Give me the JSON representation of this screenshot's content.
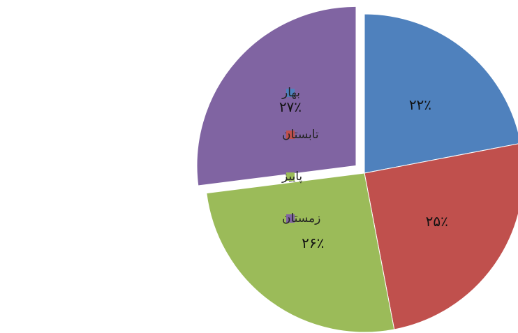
{
  "chart_data": {
    "type": "pie",
    "categories": [
      "بهار",
      "تابستان",
      "پاییز",
      "زمستان"
    ],
    "values": [
      22,
      25,
      26,
      27
    ],
    "value_labels": [
      "۲۲٪",
      "۲۵٪",
      "۲۶٪",
      "۲۷٪"
    ],
    "colors": [
      "#4f81bd",
      "#c0504d",
      "#9bbb59",
      "#8064a2"
    ],
    "legend": "left"
  }
}
